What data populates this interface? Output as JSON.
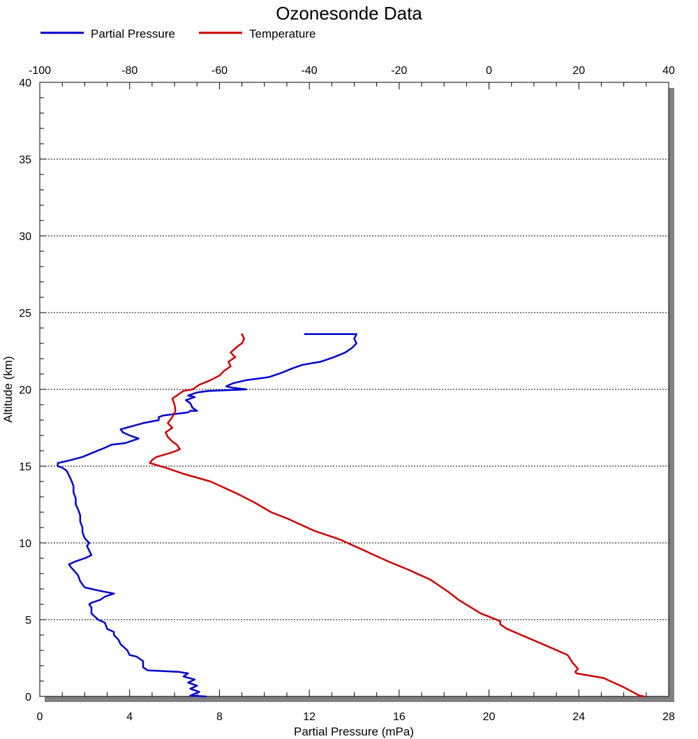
{
  "chart_data": {
    "type": "line",
    "title": "Ozonesonde Data",
    "xlabel": "Partial Pressure (mPa)",
    "ylabel": "Altitude (km)",
    "x_bottom": {
      "min": 0,
      "max": 28,
      "ticks": [
        "0",
        "4",
        "8",
        "12",
        "16",
        "20",
        "24",
        "28"
      ]
    },
    "x_top": {
      "min": -100,
      "max": 40,
      "ticks": [
        "-100",
        "-80",
        "-60",
        "-40",
        "-20",
        "0",
        "20",
        "40"
      ]
    },
    "y": {
      "min": 0,
      "max": 40,
      "ticks": [
        "0",
        "5",
        "10",
        "15",
        "20",
        "25",
        "30",
        "35",
        "40"
      ]
    },
    "grid": "horizontal-dotted",
    "legend_position": "top-left",
    "series": [
      {
        "name": "Partial Pressure",
        "color": "#0000cc",
        "axis": "bottom",
        "points": [
          [
            7.4,
            0.0
          ],
          [
            6.7,
            0.05
          ],
          [
            7.1,
            0.3
          ],
          [
            6.7,
            0.5
          ],
          [
            7.0,
            0.7
          ],
          [
            6.6,
            0.9
          ],
          [
            6.9,
            1.1
          ],
          [
            6.4,
            1.3
          ],
          [
            6.6,
            1.5
          ],
          [
            6.2,
            1.6
          ],
          [
            4.8,
            1.7
          ],
          [
            4.6,
            1.9
          ],
          [
            4.6,
            2.3
          ],
          [
            4.3,
            2.6
          ],
          [
            4.0,
            2.7
          ],
          [
            3.9,
            3.0
          ],
          [
            3.6,
            3.4
          ],
          [
            3.5,
            3.7
          ],
          [
            3.3,
            4.0
          ],
          [
            3.3,
            4.2
          ],
          [
            3.0,
            4.4
          ],
          [
            2.9,
            4.8
          ],
          [
            2.6,
            5.0
          ],
          [
            2.3,
            5.4
          ],
          [
            2.3,
            5.8
          ],
          [
            2.2,
            6.0
          ],
          [
            2.3,
            6.1
          ],
          [
            2.7,
            6.3
          ],
          [
            2.9,
            6.5
          ],
          [
            3.3,
            6.7
          ],
          [
            2.6,
            6.9
          ],
          [
            2.0,
            7.1
          ],
          [
            1.8,
            7.5
          ],
          [
            1.7,
            7.9
          ],
          [
            1.4,
            8.4
          ],
          [
            1.3,
            8.6
          ],
          [
            1.6,
            8.8
          ],
          [
            2.0,
            9.0
          ],
          [
            2.3,
            9.2
          ],
          [
            2.2,
            9.5
          ],
          [
            2.1,
            9.8
          ],
          [
            2.2,
            10.0
          ],
          [
            2.0,
            10.3
          ],
          [
            1.9,
            10.7
          ],
          [
            1.9,
            11.0
          ],
          [
            1.8,
            11.4
          ],
          [
            1.8,
            11.8
          ],
          [
            1.7,
            12.2
          ],
          [
            1.6,
            12.5
          ],
          [
            1.6,
            12.9
          ],
          [
            1.5,
            13.3
          ],
          [
            1.5,
            13.7
          ],
          [
            1.4,
            14.1
          ],
          [
            1.3,
            14.4
          ],
          [
            1.2,
            14.7
          ],
          [
            1.0,
            14.9
          ],
          [
            0.8,
            15.0
          ],
          [
            0.8,
            15.2
          ],
          [
            1.1,
            15.3
          ],
          [
            1.4,
            15.4
          ],
          [
            1.9,
            15.6
          ],
          [
            2.4,
            15.9
          ],
          [
            2.9,
            16.2
          ],
          [
            3.2,
            16.4
          ],
          [
            3.8,
            16.5
          ],
          [
            4.4,
            16.8
          ],
          [
            4.0,
            17.0
          ],
          [
            3.7,
            17.2
          ],
          [
            3.6,
            17.4
          ],
          [
            4.1,
            17.6
          ],
          [
            4.6,
            17.8
          ],
          [
            5.3,
            18.0
          ],
          [
            5.3,
            18.2
          ],
          [
            5.5,
            18.3
          ],
          [
            6.6,
            18.5
          ],
          [
            6.7,
            18.6
          ],
          [
            7.0,
            18.6
          ],
          [
            6.8,
            18.8
          ],
          [
            6.7,
            19.1
          ],
          [
            6.5,
            19.3
          ],
          [
            6.9,
            19.5
          ],
          [
            6.6,
            19.6
          ],
          [
            7.0,
            19.8
          ],
          [
            7.5,
            19.9
          ],
          [
            9.2,
            20.0
          ],
          [
            8.6,
            20.1
          ],
          [
            8.3,
            20.2
          ],
          [
            8.6,
            20.4
          ],
          [
            9.2,
            20.6
          ],
          [
            10.2,
            20.8
          ],
          [
            10.8,
            21.1
          ],
          [
            11.3,
            21.4
          ],
          [
            11.7,
            21.6
          ],
          [
            12.5,
            21.8
          ],
          [
            13.1,
            22.1
          ],
          [
            13.6,
            22.4
          ],
          [
            13.9,
            22.7
          ],
          [
            14.1,
            23.0
          ],
          [
            14.0,
            23.3
          ],
          [
            14.1,
            23.6
          ],
          [
            11.8,
            23.6
          ]
        ]
      },
      {
        "name": "Temperature",
        "color": "#cc0000",
        "axis": "top",
        "points": [
          [
            34.5,
            0.0
          ],
          [
            33.5,
            0.05
          ],
          [
            30.0,
            0.6
          ],
          [
            25.5,
            1.2
          ],
          [
            19.5,
            1.5
          ],
          [
            19.2,
            1.6
          ],
          [
            19.8,
            1.8
          ],
          [
            18.6,
            2.2
          ],
          [
            17.5,
            2.7
          ],
          [
            12.0,
            3.4
          ],
          [
            4.0,
            4.4
          ],
          [
            2.5,
            4.7
          ],
          [
            2.5,
            4.9
          ],
          [
            0.0,
            5.2
          ],
          [
            -1.8,
            5.4
          ],
          [
            -6.8,
            6.3
          ],
          [
            -9.0,
            6.8
          ],
          [
            -13.0,
            7.6
          ],
          [
            -17.5,
            8.2
          ],
          [
            -22.5,
            8.8
          ],
          [
            -28.5,
            9.6
          ],
          [
            -33.0,
            10.2
          ],
          [
            -39.0,
            10.8
          ],
          [
            -45.0,
            11.6
          ],
          [
            -48.5,
            12.0
          ],
          [
            -52.0,
            12.6
          ],
          [
            -56.0,
            13.2
          ],
          [
            -62.0,
            14.0
          ],
          [
            -68.0,
            14.5
          ],
          [
            -72.0,
            14.9
          ],
          [
            -75.5,
            15.2
          ],
          [
            -75.0,
            15.4
          ],
          [
            -74.0,
            15.6
          ],
          [
            -70.5,
            15.9
          ],
          [
            -68.8,
            16.1
          ],
          [
            -69.5,
            16.4
          ],
          [
            -70.5,
            16.6
          ],
          [
            -71.5,
            16.9
          ],
          [
            -72.0,
            17.2
          ],
          [
            -70.5,
            17.5
          ],
          [
            -71.5,
            17.8
          ],
          [
            -70.5,
            18.2
          ],
          [
            -69.8,
            18.6
          ],
          [
            -70.0,
            19.0
          ],
          [
            -70.5,
            19.4
          ],
          [
            -69.0,
            19.7
          ],
          [
            -68.0,
            19.9
          ],
          [
            -66.0,
            20.0
          ],
          [
            -64.5,
            20.3
          ],
          [
            -62.0,
            20.6
          ],
          [
            -60.0,
            20.9
          ],
          [
            -59.0,
            21.2
          ],
          [
            -57.5,
            21.5
          ],
          [
            -58.0,
            21.8
          ],
          [
            -56.5,
            22.1
          ],
          [
            -57.5,
            22.4
          ],
          [
            -56.0,
            22.8
          ],
          [
            -55.0,
            23.0
          ],
          [
            -54.5,
            23.3
          ],
          [
            -55.0,
            23.6
          ]
        ]
      }
    ]
  }
}
